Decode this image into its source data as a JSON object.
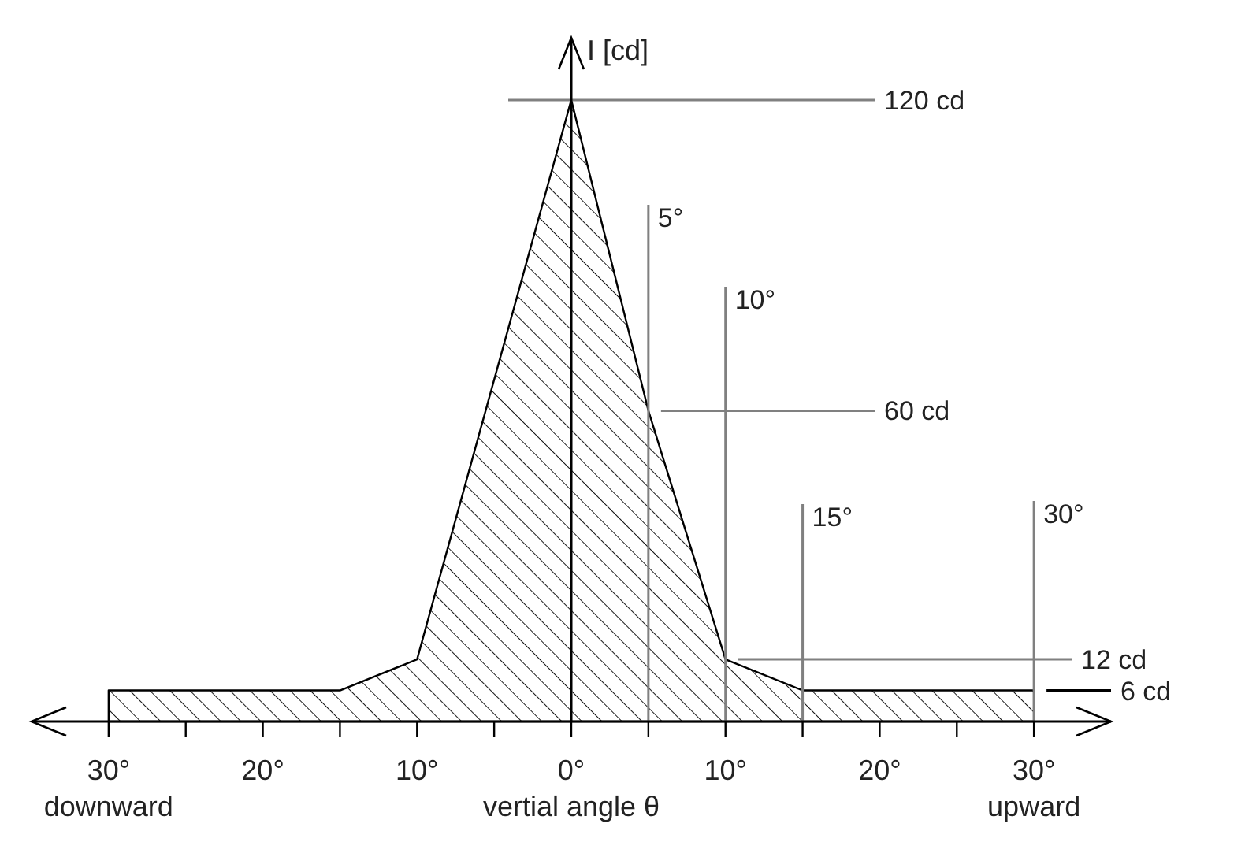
{
  "chart_data": {
    "type": "area",
    "xlabel": "vertial angle θ",
    "ylabel": "I [cd]",
    "x": [
      -30,
      -15,
      -10,
      0,
      5,
      10,
      15,
      30
    ],
    "series": [
      {
        "color": "#000000",
        "values": [
          6,
          6,
          12,
          120,
          60,
          12,
          6,
          6
        ]
      }
    ],
    "xlim": [
      -35,
      35
    ],
    "ylim": [
      0,
      132
    ],
    "xticks": [
      {
        "value": -30,
        "label": "30°"
      },
      {
        "value": -25,
        "label": null
      },
      {
        "value": -20,
        "label": "20°"
      },
      {
        "value": -15,
        "label": null
      },
      {
        "value": -10,
        "label": "10°"
      },
      {
        "value": -5,
        "label": null
      },
      {
        "value": 0,
        "label": "0°"
      },
      {
        "value": 5,
        "label": null
      },
      {
        "value": 10,
        "label": "10°"
      },
      {
        "value": 15,
        "label": null
      },
      {
        "value": 20,
        "label": "20°"
      },
      {
        "value": 25,
        "label": null
      },
      {
        "value": 30,
        "label": "30°"
      }
    ],
    "ref_lines": [
      {
        "axis": "y",
        "value": 120,
        "label": "120 cd",
        "color": "#808080"
      },
      {
        "axis": "y",
        "value": 60,
        "label": "60 cd",
        "color": "#808080"
      },
      {
        "axis": "y",
        "value": 12,
        "label": "12 cd",
        "color": "#808080"
      },
      {
        "axis": "y",
        "value": 6,
        "label": "6 cd",
        "color": "#000000"
      },
      {
        "axis": "x",
        "value": 5,
        "label": "5°",
        "color": "#808080"
      },
      {
        "axis": "x",
        "value": 10,
        "label": "10°",
        "color": "#808080"
      },
      {
        "axis": "x",
        "value": 15,
        "label": "15°",
        "color": "#808080"
      },
      {
        "axis": "x",
        "value": 30,
        "label": "30°",
        "color": "#808080"
      }
    ],
    "annotations": [
      "downward",
      "upward"
    ],
    "line_style": "solid"
  }
}
